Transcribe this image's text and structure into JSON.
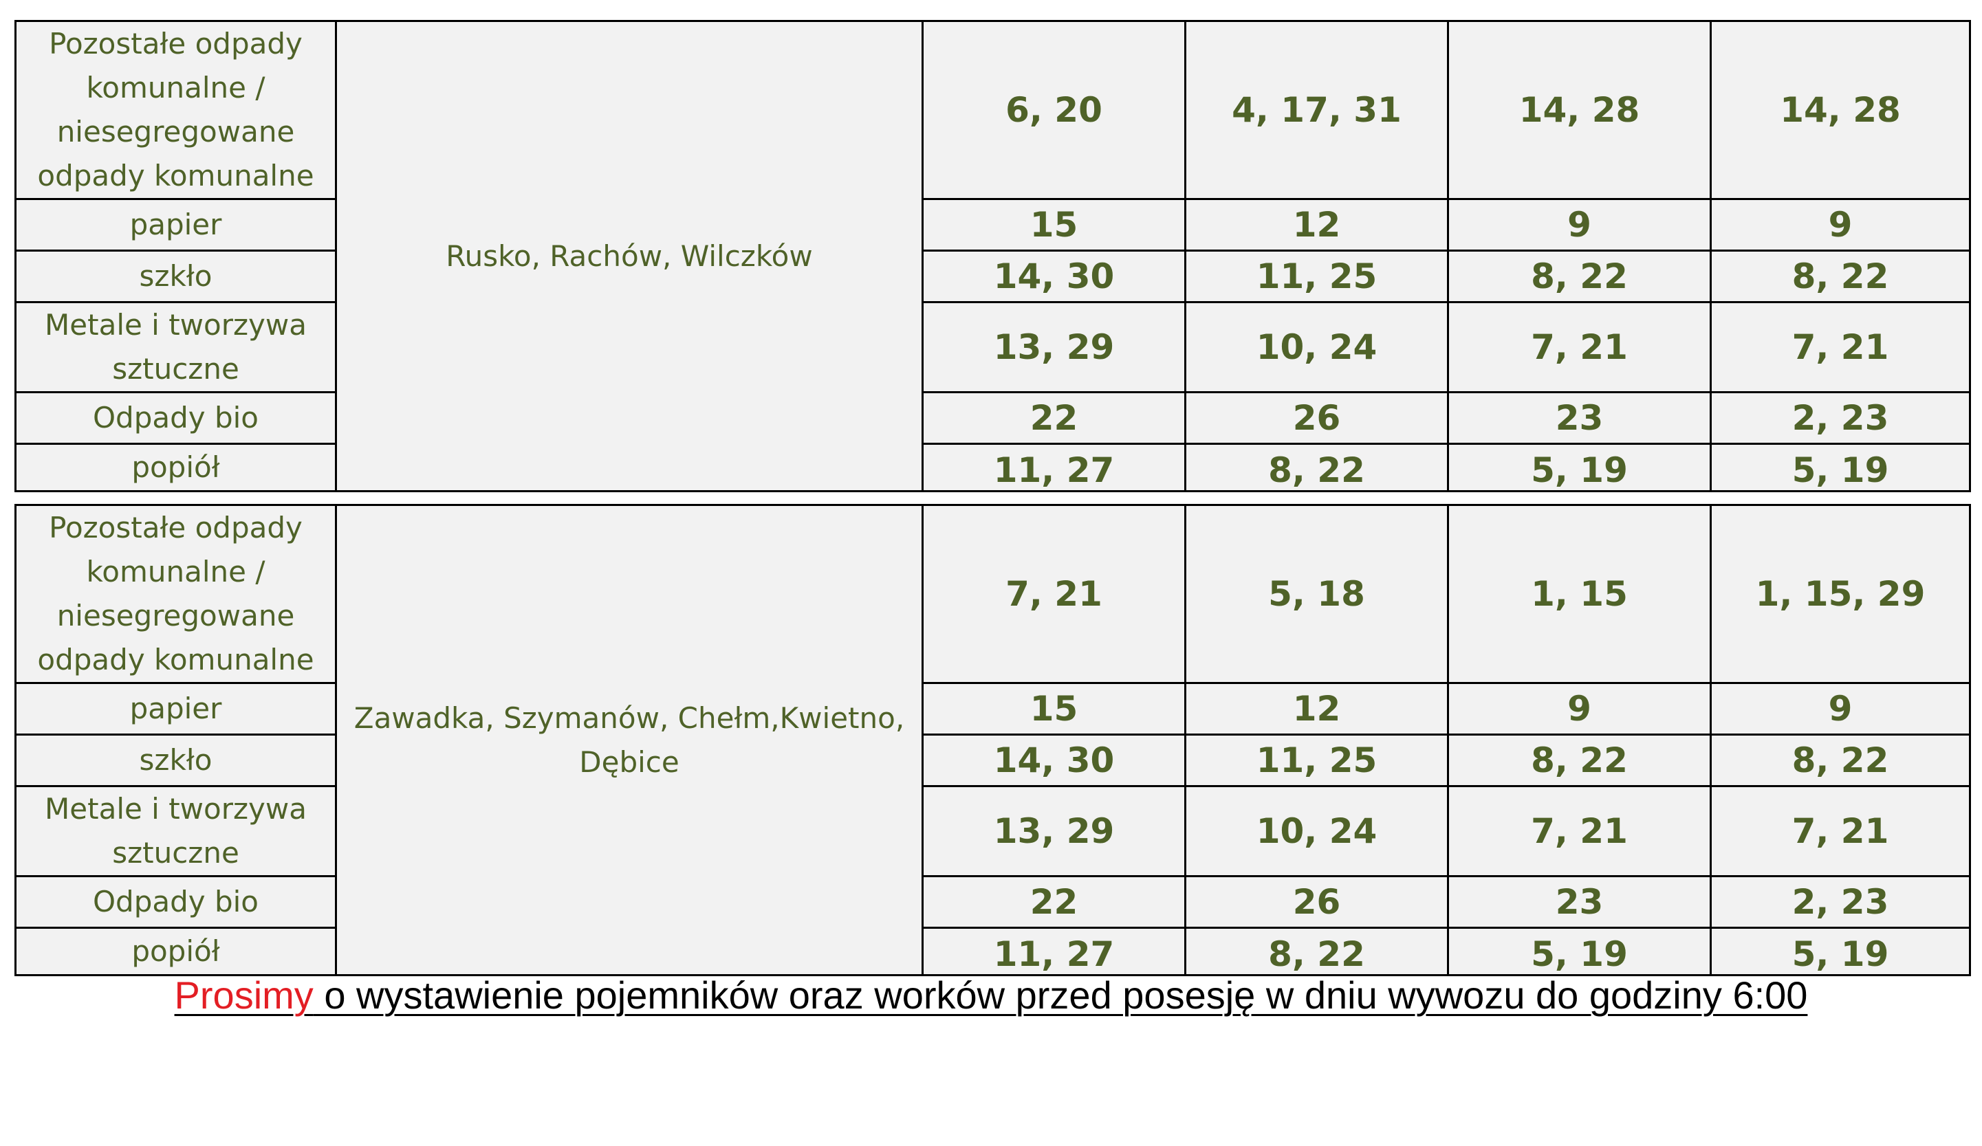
{
  "schedules": [
    {
      "villages": "Rusko, Rachów, Wilczków",
      "rows": [
        {
          "waste_type": "Pozostałe odpady komunalne / niesegregowane odpady komunalne",
          "dates": [
            "6, 20",
            "4, 17, 31",
            "14, 28",
            "14, 28"
          ]
        },
        {
          "waste_type": "papier",
          "dates": [
            "15",
            "12",
            "9",
            "9"
          ]
        },
        {
          "waste_type": "szkło",
          "dates": [
            "14, 30",
            "11, 25",
            "8, 22",
            "8, 22"
          ]
        },
        {
          "waste_type": "Metale i tworzywa sztuczne",
          "dates": [
            "13, 29",
            "10, 24",
            "7, 21",
            "7, 21"
          ]
        },
        {
          "waste_type": "Odpady  bio",
          "dates": [
            "22",
            "26",
            "23",
            "2, 23"
          ]
        },
        {
          "waste_type": "popiół",
          "dates": [
            "11, 27",
            "8, 22",
            "5, 19",
            "5, 19"
          ]
        }
      ]
    },
    {
      "villages": "Zawadka, Szymanów, Chełm,Kwietno, Dębice",
      "rows": [
        {
          "waste_type": "Pozostałe odpady komunalne / niesegregowane odpady komunalne",
          "dates": [
            "7, 21",
            "5, 18",
            "1, 15",
            "1, 15, 29"
          ]
        },
        {
          "waste_type": "papier",
          "dates": [
            "15",
            "12",
            "9",
            "9"
          ]
        },
        {
          "waste_type": "szkło",
          "dates": [
            "14, 30",
            "11, 25",
            "8, 22",
            "8, 22"
          ]
        },
        {
          "waste_type": "Metale i tworzywa sztuczne",
          "dates": [
            "13, 29",
            "10, 24",
            "7, 21",
            "7, 21"
          ]
        },
        {
          "waste_type": "Odpady  bio",
          "dates": [
            "22",
            "26",
            "23",
            "2, 23"
          ]
        },
        {
          "waste_type": "popiół",
          "dates": [
            "11, 27",
            "8, 22",
            "5, 19",
            "5, 19"
          ]
        }
      ]
    }
  ],
  "notice": {
    "highlight": "Prosimy",
    "text": " o wystawienie pojemników oraz worków przed posesję w dniu wywozu do godziny 6:00 "
  },
  "colors": {
    "cell_background": "#f2f2f2",
    "cell_text": "#4f6228",
    "border": "#000000",
    "highlight": "#e31e24"
  }
}
